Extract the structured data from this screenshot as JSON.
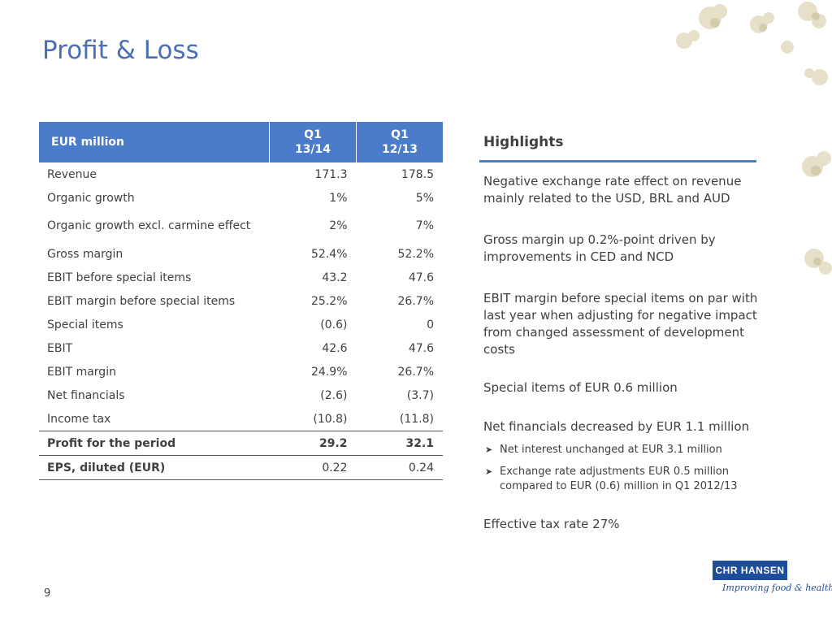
{
  "title": "Profit & Loss",
  "table": {
    "header": {
      "label": "EUR million",
      "col1": [
        "Q1",
        "13/14"
      ],
      "col2": [
        "Q1",
        "12/13"
      ]
    },
    "rows": [
      {
        "label": "Revenue",
        "v1": "171.3",
        "v2": "178.5"
      },
      {
        "label": "Organic growth",
        "v1": "1%",
        "v2": "5%"
      },
      {
        "label": "Organic growth excl. carmine effect",
        "v1": "2%",
        "v2": "7%"
      },
      {
        "label": "Gross margin",
        "v1": "52.4%",
        "v2": "52.2%"
      },
      {
        "label": "EBIT before special items",
        "v1": "43.2",
        "v2": "47.6"
      },
      {
        "label": "EBIT margin before special items",
        "v1": "25.2%",
        "v2": "26.7%"
      },
      {
        "label": "Special items",
        "v1": "(0.6)",
        "v2": "0"
      },
      {
        "label": "EBIT",
        "v1": "42.6",
        "v2": "47.6"
      },
      {
        "label": "EBIT margin",
        "v1": "24.9%",
        "v2": "26.7%"
      },
      {
        "label": "Net financials",
        "v1": "(2.6)",
        "v2": "(3.7)"
      },
      {
        "label": "Income tax",
        "v1": "(10.8)",
        "v2": "(11.8)"
      },
      {
        "label": "Profit for the period",
        "v1": "29.2",
        "v2": "32.1"
      },
      {
        "label": "EPS, diluted (EUR)",
        "v1": "0.22",
        "v2": "0.24"
      }
    ]
  },
  "highlights": {
    "title": "Highlights",
    "p1": "Negative exchange rate effect on revenue mainly related to the USD, BRL and AUD",
    "p2": "Gross margin up 0.2%-point driven by improvements in CED and NCD",
    "p3": "EBIT margin before special items on par with last year when adjusting for negative impact from changed assessment of development costs",
    "p4": "Special items of EUR 0.6 million",
    "p5": "Net financials decreased by EUR 1.1 million",
    "b1": "Net interest unchanged at EUR 3.1 million",
    "b2": "Exchange rate adjustments EUR 0.5 million compared to EUR (0.6) million in Q1 2012/13",
    "p6": "Effective tax rate 27%"
  },
  "page_number": "9",
  "logo": {
    "name": "CHR HANSEN",
    "tagline": "Improving food & health"
  },
  "colors": {
    "accent": "#4a7cc9",
    "title": "#4a6fb5",
    "brand": "#1f4d9a"
  }
}
